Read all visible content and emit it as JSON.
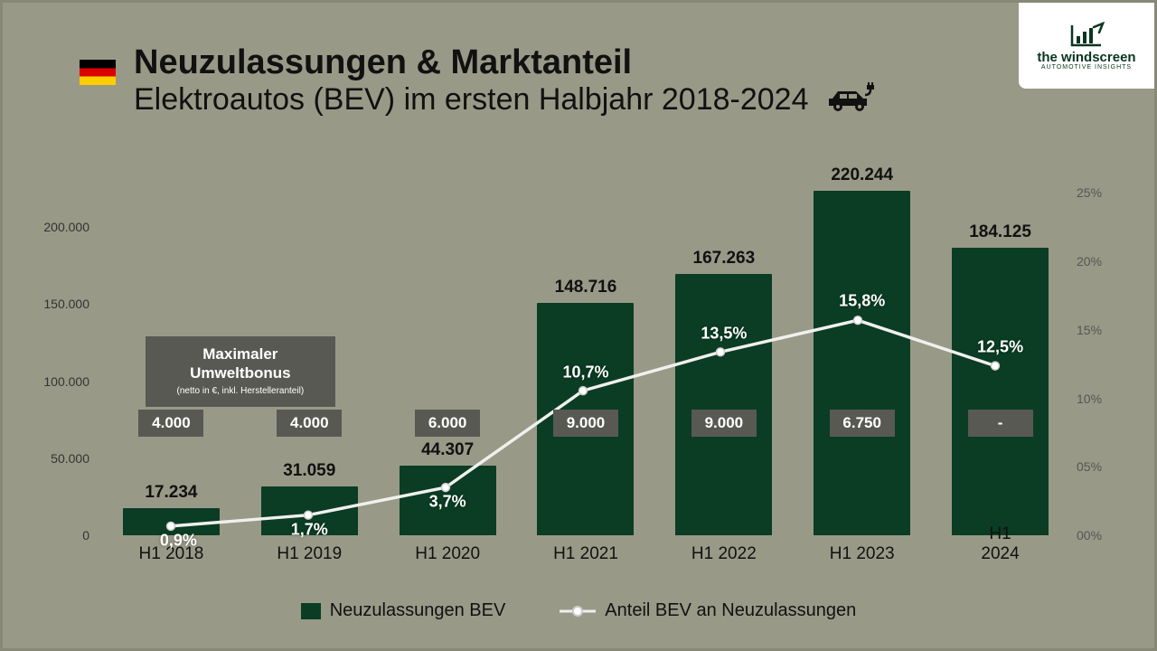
{
  "logo": {
    "name": "the windscreen",
    "sub": "AUTOMOTIVE INSIGHTS",
    "iconColor": "#0a3520"
  },
  "header": {
    "title": "Neuzulassungen & Marktanteil",
    "subtitle": "Elektroautos (BEV) im ersten Halbjahr 2018-2024"
  },
  "bonusBox": {
    "line1": "Maximaler",
    "line2": "Umweltbonus",
    "note": "(netto in €, inkl. Herstelleranteil)"
  },
  "chart": {
    "type": "bar+line",
    "categories": [
      "H1 2018",
      "H1 2019",
      "H1 2020",
      "H1 2021",
      "H1 2022",
      "H1 2023",
      "H1 2024"
    ],
    "barValues": [
      17234,
      31059,
      44307,
      148716,
      167263,
      220244,
      184125
    ],
    "barLabels": [
      "17.234",
      "31.059",
      "44.307",
      "148.716",
      "167.263",
      "220.244",
      "184.125"
    ],
    "barColor": "#0a3d23",
    "lineValues": [
      0.9,
      1.7,
      3.7,
      10.7,
      13.5,
      15.8,
      12.5
    ],
    "lineLabels": [
      "0,9%",
      "1,7%",
      "3,7%",
      "10,7%",
      "13,5%",
      "15,8%",
      "12,5%"
    ],
    "lineColor": "#f0f0ee",
    "markerFill": "#ffffff",
    "markerStroke": "#cccccc",
    "bonusValues": [
      "4.000",
      "4.000",
      "6.000",
      "9.000",
      "9.000",
      "6.750",
      "-"
    ],
    "bonusBg": "#595953",
    "leftAxis": {
      "min": 0,
      "max": 240000,
      "ticks": [
        0,
        50000,
        100000,
        150000,
        200000
      ],
      "tickLabels": [
        "0",
        "50.000",
        "100.000",
        "150.000",
        "200.000"
      ]
    },
    "rightAxis": {
      "min": 0,
      "max": 27,
      "ticks": [
        0,
        5,
        10,
        15,
        20,
        25
      ],
      "tickLabels": [
        "00%",
        "05%",
        "10%",
        "15%",
        "20%",
        "25%"
      ]
    },
    "background": "#999988",
    "fontSizes": {
      "axis": 14,
      "barLabel": 19,
      "xLabel": 19,
      "pct": 18,
      "legend": 20
    }
  },
  "legend": {
    "bar": "Neuzulassungen BEV",
    "line": "Anteil BEV an Neuzulassungen"
  }
}
